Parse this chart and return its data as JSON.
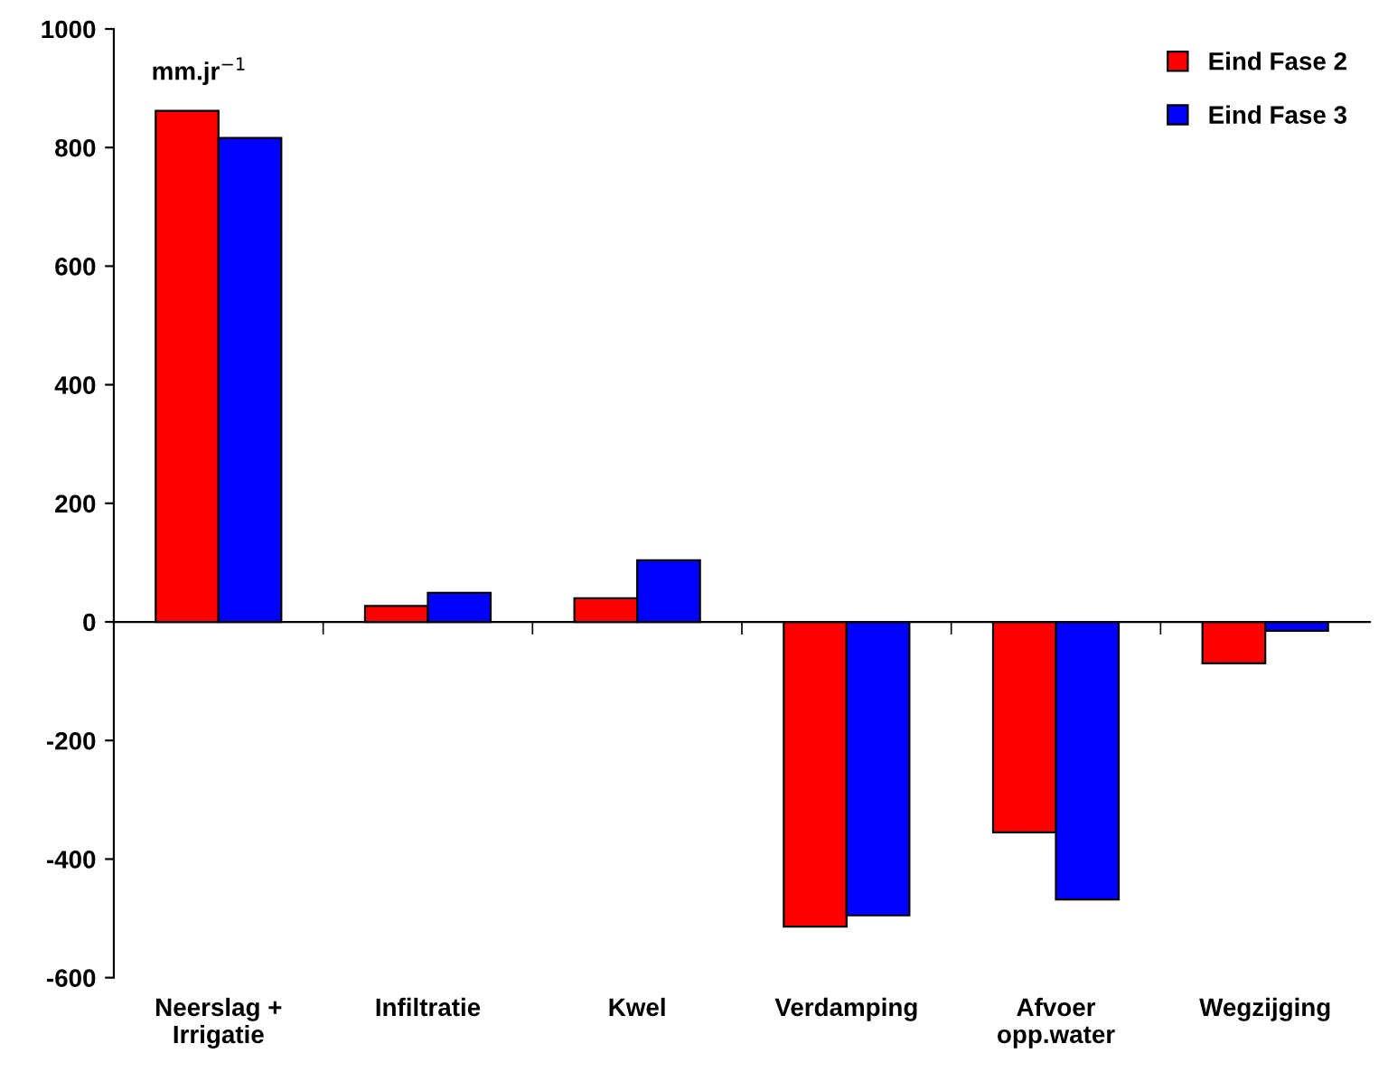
{
  "chart_data": {
    "type": "bar",
    "ylabel": "mm.jr$^{−1}$",
    "categories": [
      "Neerslag +\nIrrigatie",
      "Infiltratie",
      "Kwel",
      "Verdamping",
      "Afvoer\nopp.water",
      "Wegzijging"
    ],
    "series": [
      {
        "name": "Eind Fase 2",
        "color": "#ff0000",
        "values": [
          862,
          27,
          40,
          -514,
          -355,
          -70
        ]
      },
      {
        "name": "Eind Fase 3",
        "color": "#0000ff",
        "values": [
          816,
          49,
          104,
          -495,
          -468,
          -15
        ]
      }
    ],
    "ylim": [
      -600,
      1000
    ],
    "yticks": [
      -600,
      -400,
      -200,
      0,
      200,
      400,
      600,
      800,
      1000
    ],
    "legend": "top right"
  }
}
